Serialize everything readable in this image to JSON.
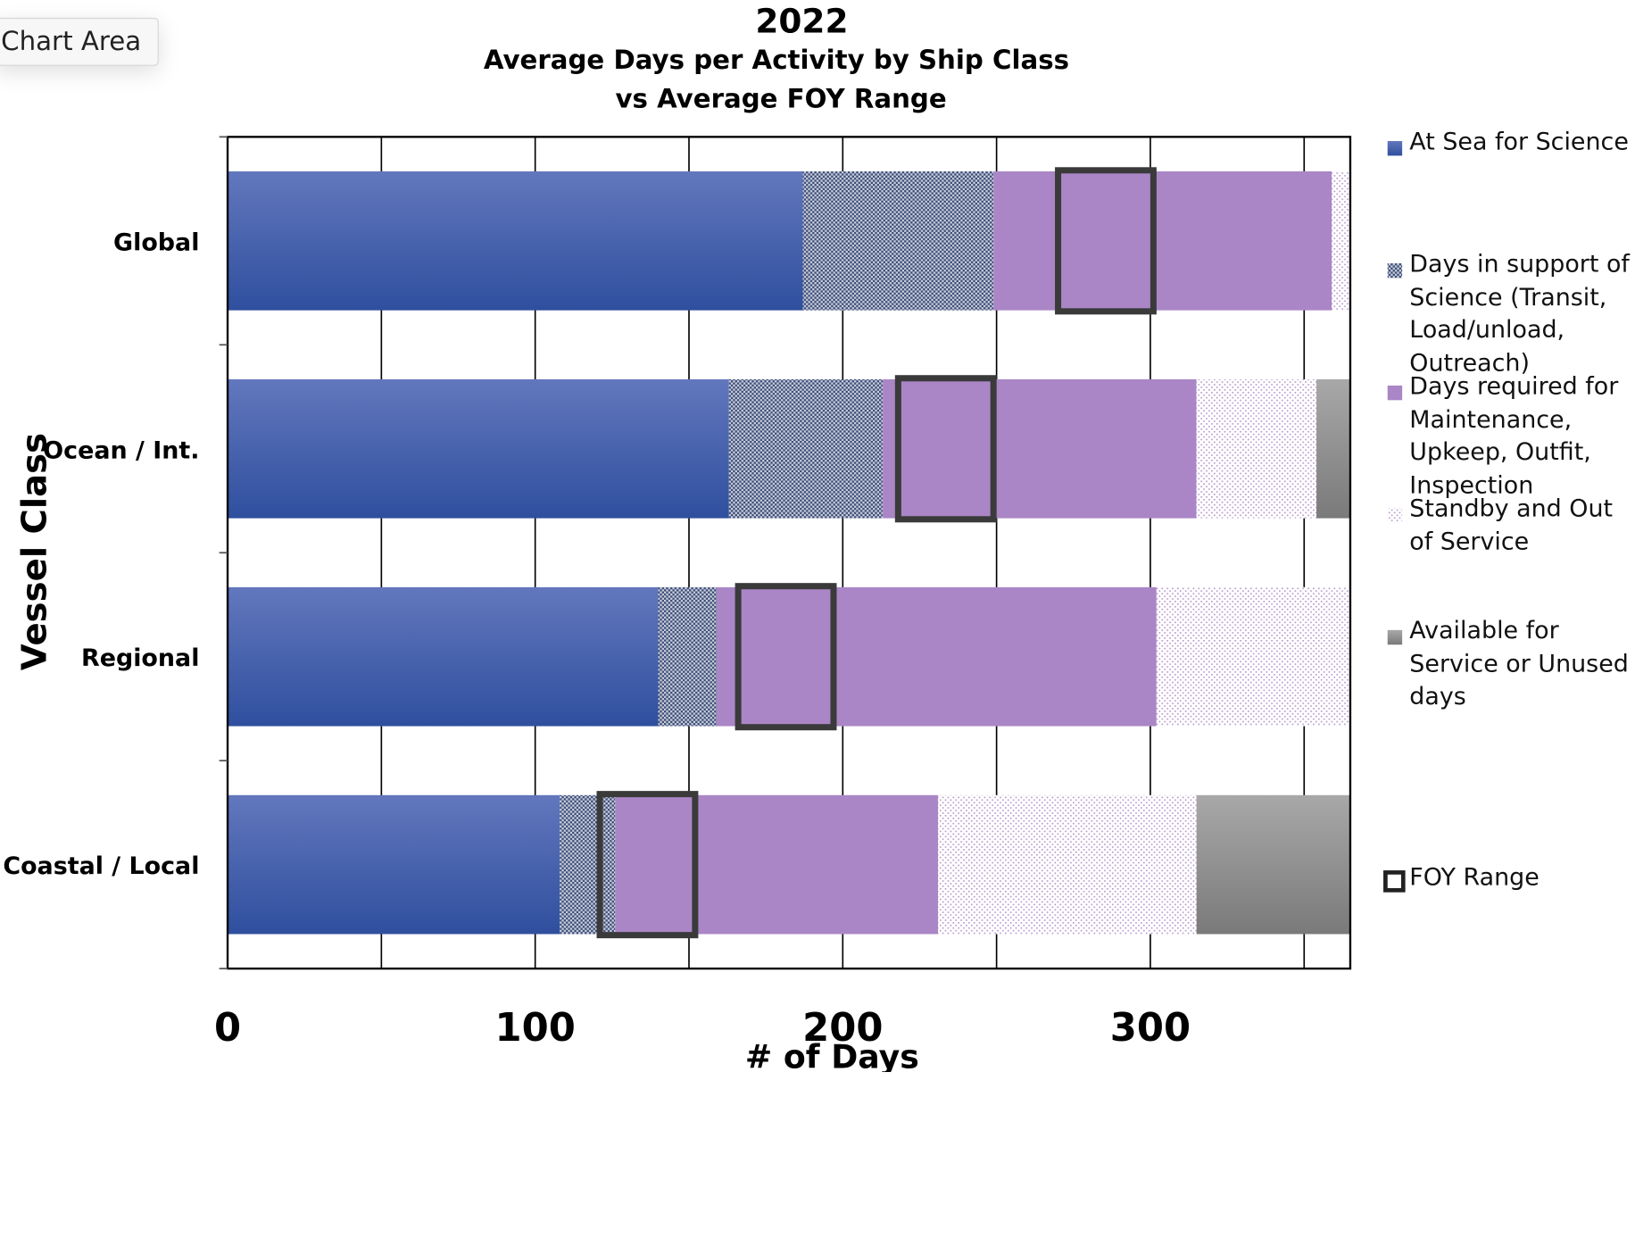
{
  "chip_label": "Chart Area",
  "chart_data": {
    "type": "bar",
    "orientation": "horizontal",
    "stacked": true,
    "title": "2022",
    "subtitle": "Average Days per Activity by Ship Class vs Average FOY Range",
    "xlabel": "# of Days",
    "ylabel": "Vessel Class",
    "xlim": [
      0,
      365
    ],
    "xticks": [
      0,
      100,
      200,
      300
    ],
    "grid": true,
    "legend_position": "right",
    "categories": [
      "Global",
      "Ocean / Int.",
      "Regional",
      "Coastal / Local"
    ],
    "series": [
      {
        "name": "At Sea for Science",
        "color": "#3f5fb0",
        "pattern": "solid-gradient",
        "values": [
          187,
          163,
          140,
          108
        ]
      },
      {
        "name": "Days in support of Science (Transit, Load/unload, Outreach)",
        "color": "#4a5e86",
        "pattern": "crosshatch",
        "values": [
          62,
          50,
          19,
          18
        ]
      },
      {
        "name": "Days required for Maintenance, Upkeep, Outfit, Inspection",
        "color": "#aa86c6",
        "pattern": "solid",
        "values": [
          110,
          102,
          143,
          105
        ]
      },
      {
        "name": "Standby and Out of Service",
        "color": "#c9b2da",
        "pattern": "dots",
        "values": [
          6,
          39,
          63,
          84
        ]
      },
      {
        "name": "Available for Service or Unused days",
        "color": "#8f8f8f",
        "pattern": "solid-gradient",
        "values": [
          0,
          11,
          0,
          50
        ]
      }
    ],
    "foy_range": {
      "name": "FOY Range",
      "ranges": [
        [
          270,
          301
        ],
        [
          218,
          249
        ],
        [
          166,
          197
        ],
        [
          121,
          152
        ]
      ]
    }
  }
}
